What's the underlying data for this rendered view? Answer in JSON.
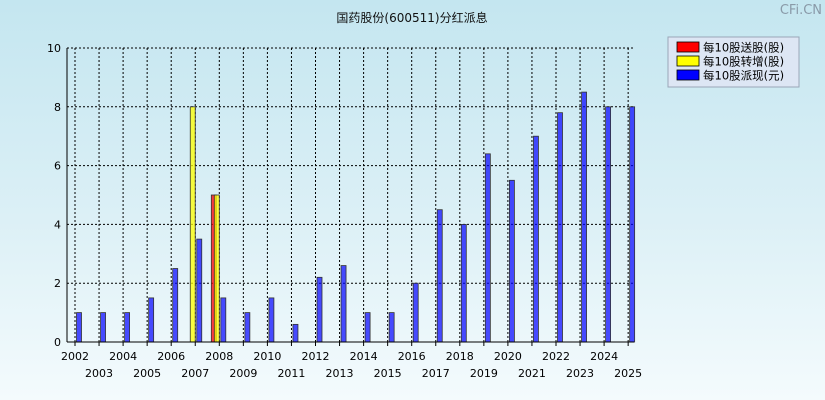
{
  "title": "国药股份(600511)分红派息",
  "watermark": "CFi.CN",
  "colors": {
    "send": "#ff0000",
    "transfer": "#ffff00",
    "dividend": "#0000ff",
    "legend_bg": "#dde6f4",
    "grid": "#000000"
  },
  "chart_data": {
    "type": "bar",
    "title": "国药股份(600511)分红派息",
    "categories": [
      "2002",
      "2003",
      "2004",
      "2005",
      "2006",
      "2007",
      "2008",
      "2009",
      "2010",
      "2011",
      "2012",
      "2013",
      "2014",
      "2015",
      "2016",
      "2017",
      "2018",
      "2019",
      "2020",
      "2021",
      "2022",
      "2023",
      "2024",
      "2025"
    ],
    "ylim": [
      0,
      10
    ],
    "yticks": [
      0,
      2,
      4,
      6,
      8,
      10
    ],
    "grid": true,
    "legend_position": "top-right",
    "bars": [
      {
        "label": "2002",
        "series": "每10股派现(元)",
        "value": 1.0
      },
      {
        "label": "2003",
        "series": "每10股派现(元)",
        "value": 1.0
      },
      {
        "label": "2004",
        "series": "每10股派现(元)",
        "value": 1.0
      },
      {
        "label": "2005",
        "series": "每10股派现(元)",
        "value": 1.5
      },
      {
        "label": "2006",
        "series": "每10股派现(元)",
        "value": 2.5
      },
      {
        "label": "2007",
        "series": "每10股转增(股)",
        "value": 8.0
      },
      {
        "label": "2007",
        "series": "每10股派现(元)",
        "value": 3.5
      },
      {
        "label": "2008",
        "series": "每10股送股(股)",
        "value": 5.0
      },
      {
        "label": "2008",
        "series": "每10股转增(股)",
        "value": 5.0
      },
      {
        "label": "2008",
        "series": "每10股派现(元)",
        "value": 1.5
      },
      {
        "label": "2009",
        "series": "每10股派现(元)",
        "value": 1.0
      },
      {
        "label": "2010",
        "series": "每10股派现(元)",
        "value": 1.5
      },
      {
        "label": "2011",
        "series": "每10股派现(元)",
        "value": 0.6
      },
      {
        "label": "2012",
        "series": "每10股派现(元)",
        "value": 2.2
      },
      {
        "label": "2013",
        "series": "每10股派现(元)",
        "value": 2.6
      },
      {
        "label": "2014",
        "series": "每10股派现(元)",
        "value": 1.0
      },
      {
        "label": "2015",
        "series": "每10股派现(元)",
        "value": 1.0
      },
      {
        "label": "2016",
        "series": "每10股派现(元)",
        "value": 2.0
      },
      {
        "label": "2017",
        "series": "每10股派现(元)",
        "value": 4.5
      },
      {
        "label": "2018",
        "series": "每10股派现(元)",
        "value": 4.0
      },
      {
        "label": "2019",
        "series": "每10股派现(元)",
        "value": 6.4
      },
      {
        "label": "2020",
        "series": "每10股派现(元)",
        "value": 5.5
      },
      {
        "label": "2021",
        "series": "每10股派现(元)",
        "value": 7.0
      },
      {
        "label": "2022",
        "series": "每10股派现(元)",
        "value": 7.8
      },
      {
        "label": "2023",
        "series": "每10股派现(元)",
        "value": 8.5
      },
      {
        "label": "2024",
        "series": "每10股派现(元)",
        "value": 8.0
      },
      {
        "label": "2025",
        "series": "每10股派现(元)",
        "value": 8.0
      }
    ],
    "legend": [
      {
        "name": "每10股送股(股)",
        "color": "#ff0000"
      },
      {
        "name": "每10股转增(股)",
        "color": "#ffff00"
      },
      {
        "name": "每10股派现(元)",
        "color": "#0000ff"
      }
    ]
  }
}
